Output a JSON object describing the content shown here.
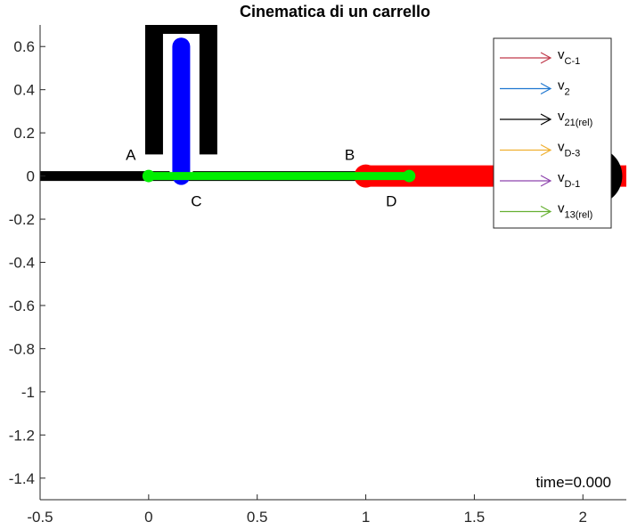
{
  "chart_data": {
    "type": "scatter",
    "title": "Cinematica di un carrello",
    "xlim": [
      -0.5,
      2.2
    ],
    "ylim": [
      -1.5,
      0.7
    ],
    "x_ticks": [
      -0.5,
      0,
      0.5,
      1,
      1.5,
      2
    ],
    "x_tick_labels": [
      "-0.5",
      "0",
      "0.5",
      "1",
      "1.5",
      "2"
    ],
    "y_ticks": [
      -1.4,
      -1.2,
      -1,
      -0.8,
      -0.6,
      -0.4,
      -0.2,
      0,
      0.2,
      0.4,
      0.6
    ],
    "y_tick_labels": [
      "-1.4",
      "-1.2",
      "-1",
      "-0.8",
      "-0.6",
      "-0.4",
      "-0.2",
      "0",
      "0.2",
      "0.4",
      "0.6"
    ],
    "grid": false,
    "legend_location": "top-right",
    "legend": [
      {
        "base": "v",
        "sub": "C-1",
        "color": "#c0394b"
      },
      {
        "base": "v",
        "sub": "2",
        "color": "#1f77d0"
      },
      {
        "base": "v",
        "sub": "21(rel)",
        "color": "#000000"
      },
      {
        "base": "v",
        "sub": "D-3",
        "color": "#f0b030"
      },
      {
        "base": "v",
        "sub": "D-1",
        "color": "#8e44ad"
      },
      {
        "base": "v",
        "sub": "13(rel)",
        "color": "#66b032"
      }
    ],
    "points": [
      {
        "name": "A",
        "x": 0,
        "y": 0
      },
      {
        "name": "B",
        "x": 1,
        "y": 0
      },
      {
        "name": "C",
        "x": 0.15,
        "y": 0
      },
      {
        "name": "D",
        "x": 1.2,
        "y": 0
      }
    ],
    "bodies": {
      "ground_rail": {
        "x": [
          -0.5,
          2.2
        ],
        "y": [
          0,
          0
        ],
        "color": "#000000"
      },
      "guide": {
        "x_center": 0.15,
        "half_width": 0.125,
        "y_bottom": 0.1,
        "y_top": 0.7,
        "color": "#000000"
      },
      "slider": {
        "x": [
          0.15,
          0.15
        ],
        "y": [
          0,
          0.6
        ],
        "color": "#0000ff"
      },
      "rod": {
        "x": [
          0,
          1.2
        ],
        "y": [
          0,
          0
        ],
        "color": "#00ee00"
      },
      "cart": {
        "x": [
          1,
          2.2
        ],
        "y": [
          0,
          0
        ],
        "color": "#ff0000"
      },
      "wheel": {
        "x": 2.05,
        "y": 0,
        "color": "#000000"
      }
    },
    "annotation": "time=0.000"
  }
}
